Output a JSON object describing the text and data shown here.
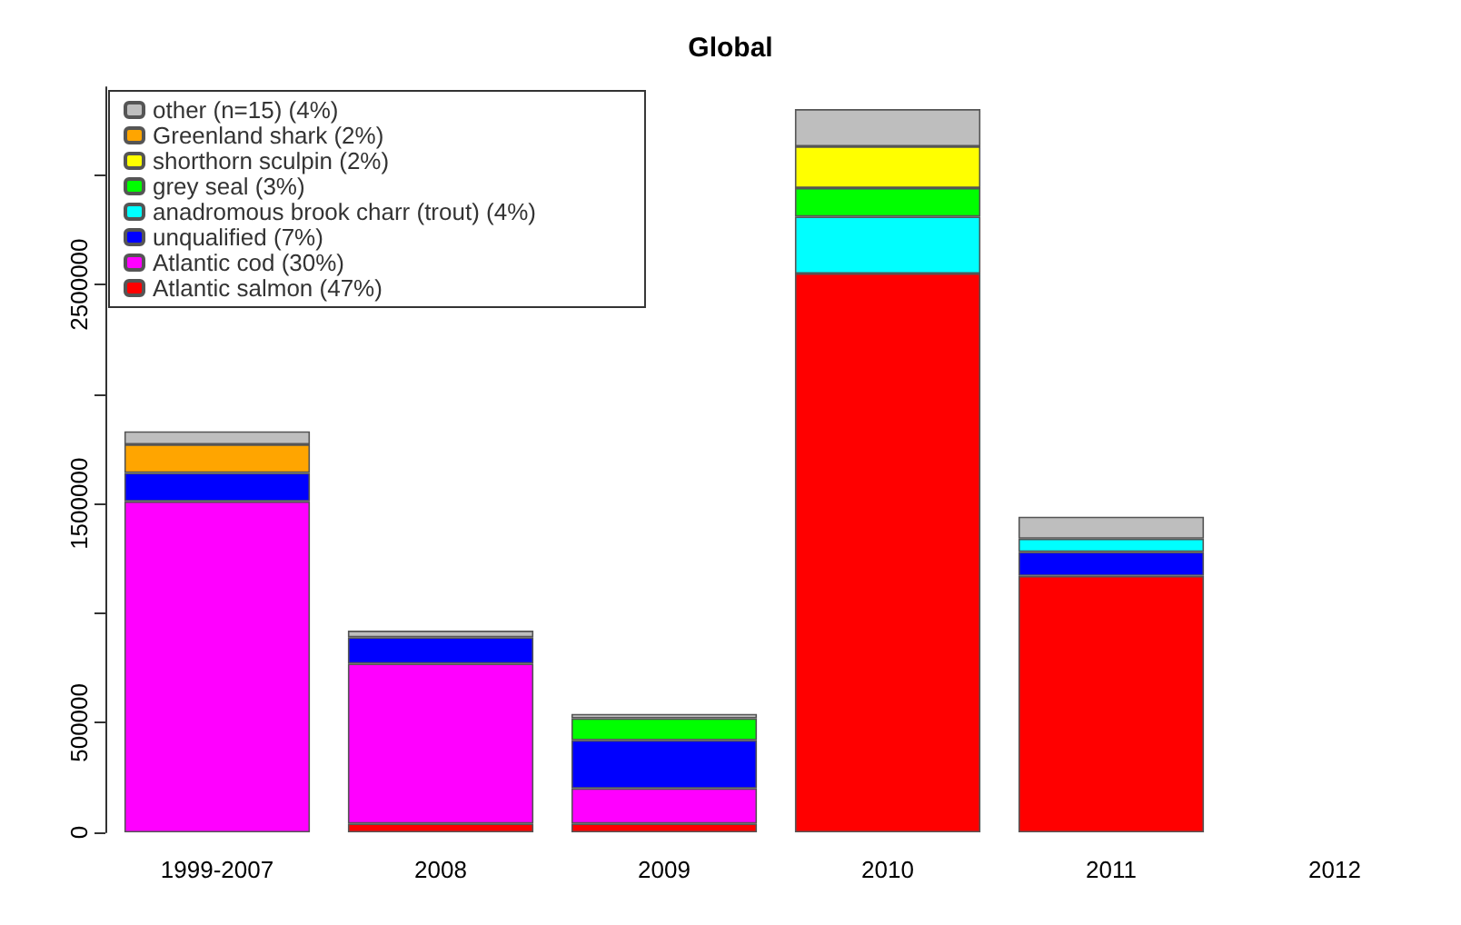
{
  "chart_data": {
    "type": "bar",
    "title": "Global",
    "stacked": true,
    "categories": [
      "1999-2007",
      "2008",
      "2009",
      "2010",
      "2011",
      "2012"
    ],
    "series": [
      {
        "name": "Atlantic salmon (47%)",
        "color": "#ff0000",
        "values": [
          0,
          40000,
          40000,
          2550000,
          1170000,
          0
        ]
      },
      {
        "name": "Atlantic cod (30%)",
        "color": "#ff00ff",
        "values": [
          1510000,
          730000,
          160000,
          0,
          0,
          0
        ]
      },
      {
        "name": "unqualified (7%)",
        "color": "#0000ff",
        "values": [
          130000,
          120000,
          220000,
          0,
          110000,
          0
        ]
      },
      {
        "name": "anadromous brook charr (trout) (4%)",
        "color": "#00ffff",
        "values": [
          0,
          0,
          0,
          260000,
          60000,
          0
        ]
      },
      {
        "name": "grey seal (3%)",
        "color": "#00ff00",
        "values": [
          0,
          0,
          100000,
          130000,
          0,
          0
        ]
      },
      {
        "name": "shorthorn sculpin (2%)",
        "color": "#ffff00",
        "values": [
          0,
          0,
          0,
          190000,
          0,
          0
        ]
      },
      {
        "name": "Greenland shark (2%)",
        "color": "#ffa500",
        "values": [
          130000,
          0,
          0,
          0,
          0,
          0
        ]
      },
      {
        "name": "other (n=15) (4%)",
        "color": "#bebebe",
        "values": [
          60000,
          30000,
          20000,
          170000,
          100000,
          0
        ]
      }
    ],
    "ylim": [
      0,
      3400000
    ],
    "yticks": [
      0,
      500000,
      {
        "value": 1000000,
        "label": null
      },
      1500000,
      {
        "value": 2000000,
        "label": null
      },
      2500000,
      {
        "value": 3000000,
        "label": null
      }
    ],
    "grid": false,
    "legend": "top left"
  }
}
